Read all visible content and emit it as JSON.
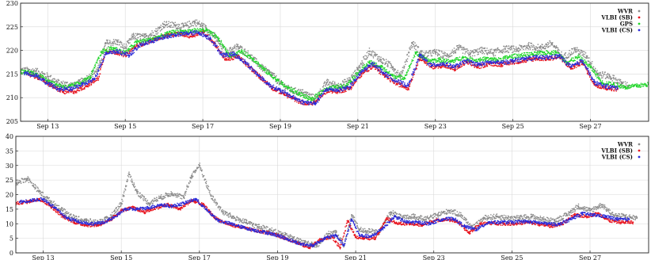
{
  "chart_data": [
    {
      "type": "scatter",
      "x_unit": "Sep day",
      "xlim": [
        12.3,
        28.5
      ],
      "ylim": [
        205,
        230
      ],
      "grid": true,
      "legend_position": "top-right",
      "x_ticks": [
        13,
        15,
        17,
        19,
        21,
        23,
        25,
        27
      ],
      "x_tick_labels": [
        "Sep 13",
        "Sep 15",
        "Sep 17",
        "Sep 19",
        "Sep 21",
        "Sep 23",
        "Sep 25",
        "Sep 27"
      ],
      "y_ticks": [
        205,
        210,
        215,
        220,
        225,
        230
      ],
      "y_tick_labels": [
        "205",
        "210",
        "215",
        "220",
        "225",
        "230"
      ],
      "series": [
        {
          "name": "WVR",
          "color": "#8a8a8a",
          "x": [
            12.3,
            12.7,
            13.0,
            13.3,
            13.7,
            14.0,
            14.3,
            14.5,
            14.8,
            15.0,
            15.2,
            15.5,
            15.8,
            16.0,
            16.3,
            16.5,
            16.8,
            17.0,
            17.3,
            17.6,
            17.9,
            18.2,
            18.5,
            18.8,
            19.0,
            19.3,
            19.6,
            19.9,
            20.2,
            20.5,
            20.8,
            21.0,
            21.3,
            21.6,
            21.9,
            22.1,
            22.4,
            22.7,
            23.0,
            23.3,
            23.6,
            23.9,
            24.2,
            24.5,
            24.8,
            25.1,
            25.4,
            25.7,
            26.0,
            26.3,
            26.6,
            26.9,
            27.2,
            27.5,
            27.8,
            28.0
          ],
          "y": [
            215.8,
            215.6,
            214.5,
            213.0,
            212.6,
            214.0,
            216.0,
            221.5,
            221.8,
            220.5,
            223.0,
            222.8,
            224.0,
            225.5,
            225.3,
            225.0,
            226.0,
            225.2,
            223.0,
            219.5,
            220.8,
            219.0,
            216.5,
            214.8,
            213.0,
            211.5,
            211.0,
            209.8,
            213.2,
            212.5,
            213.8,
            216.0,
            219.8,
            218.0,
            216.5,
            214.5,
            221.5,
            219.0,
            219.6,
            218.8,
            220.5,
            219.3,
            220.0,
            219.5,
            220.3,
            220.2,
            221.0,
            220.5,
            221.5,
            218.5,
            220.2,
            218.8,
            215.0,
            214.5,
            213.0,
            212.5
          ]
        },
        {
          "name": "VLBI (SB)",
          "color": "#e8141e",
          "x": [
            12.5,
            12.8,
            13.1,
            13.4,
            13.7,
            14.0,
            14.3,
            14.5,
            14.8,
            15.0,
            15.3,
            15.6,
            15.8,
            16.1,
            16.4,
            16.7,
            17.0,
            17.3,
            17.6,
            17.9,
            18.2,
            18.5,
            18.8,
            19.1,
            19.4,
            19.7,
            19.9,
            20.2,
            20.5,
            20.8,
            21.1,
            21.4,
            21.7,
            22.0,
            22.3,
            22.6,
            22.9,
            23.2,
            23.5,
            23.8,
            24.1,
            24.4,
            24.7,
            25.0,
            25.3,
            25.6,
            25.9,
            26.2,
            26.5,
            26.8,
            27.1,
            27.4,
            27.7
          ],
          "y": [
            214.8,
            214.2,
            212.5,
            211.2,
            211.3,
            212.5,
            214.0,
            220.0,
            219.5,
            219.0,
            221.0,
            221.8,
            222.5,
            223.2,
            223.5,
            223.0,
            224.0,
            221.5,
            218.0,
            218.8,
            216.5,
            214.2,
            212.0,
            210.8,
            209.5,
            208.6,
            209.0,
            211.5,
            211.3,
            212.0,
            215.0,
            216.8,
            214.5,
            213.0,
            212.0,
            218.5,
            216.5,
            216.8,
            216.0,
            217.5,
            216.5,
            217.2,
            217.0,
            217.5,
            217.8,
            218.3,
            218.2,
            218.6,
            216.2,
            217.5,
            212.8,
            212.0,
            211.8
          ]
        },
        {
          "name": "GPS",
          "color": "#22d62b",
          "x": [
            12.3,
            12.6,
            12.9,
            13.2,
            13.5,
            13.8,
            14.1,
            14.4,
            14.7,
            15.0,
            15.3,
            15.6,
            15.9,
            16.2,
            16.5,
            16.8,
            17.1,
            17.4,
            17.7,
            18.0,
            18.3,
            18.6,
            18.9,
            19.2,
            19.5,
            19.8,
            20.1,
            20.4,
            20.7,
            21.0,
            21.3,
            21.6,
            21.9,
            22.2,
            22.5,
            22.8,
            23.1,
            23.4,
            23.7,
            24.0,
            24.3,
            24.6,
            24.9,
            25.2,
            25.5,
            25.8,
            26.1,
            26.4,
            26.7,
            27.0,
            27.3,
            27.6,
            27.9,
            28.2,
            28.5
          ],
          "y": [
            215.5,
            215.3,
            214.2,
            212.8,
            212.2,
            213.0,
            214.3,
            219.8,
            220.5,
            219.5,
            221.8,
            222.2,
            223.0,
            223.8,
            224.0,
            224.2,
            224.3,
            222.5,
            218.8,
            219.8,
            218.2,
            215.8,
            213.8,
            212.0,
            210.8,
            209.5,
            211.5,
            212.2,
            212.6,
            215.2,
            217.5,
            216.5,
            214.6,
            214.2,
            219.5,
            217.8,
            218.0,
            217.6,
            218.5,
            217.9,
            218.2,
            218.0,
            218.6,
            219.0,
            219.2,
            219.5,
            219.6,
            217.5,
            218.6,
            216.5,
            213.2,
            212.8,
            212.2,
            212.5,
            212.8
          ]
        },
        {
          "name": "VLBI (CS)",
          "color": "#2b2bd8",
          "x": [
            12.4,
            12.7,
            13.0,
            13.3,
            13.6,
            13.9,
            14.2,
            14.5,
            14.8,
            15.1,
            15.4,
            15.7,
            16.0,
            16.3,
            16.6,
            16.9,
            17.2,
            17.5,
            17.8,
            18.1,
            18.4,
            18.7,
            19.0,
            19.3,
            19.6,
            19.9,
            20.2,
            20.5,
            20.8,
            21.1,
            21.4,
            21.7,
            22.0,
            22.3,
            22.6,
            22.9,
            23.2,
            23.5,
            23.8,
            24.1,
            24.4,
            24.7,
            25.0,
            25.3,
            25.6,
            25.9,
            26.2,
            26.5,
            26.8,
            27.1,
            27.4,
            27.7
          ],
          "y": [
            215.2,
            214.8,
            213.0,
            211.8,
            211.8,
            212.8,
            213.8,
            219.5,
            219.8,
            219.0,
            221.2,
            222.0,
            222.8,
            223.3,
            223.6,
            223.8,
            222.5,
            219.0,
            219.2,
            217.5,
            215.0,
            212.8,
            211.5,
            210.2,
            209.0,
            208.8,
            211.8,
            211.6,
            212.3,
            215.5,
            217.2,
            215.0,
            213.5,
            212.5,
            219.0,
            216.8,
            217.2,
            216.5,
            217.8,
            217.0,
            217.5,
            217.4,
            217.8,
            218.2,
            218.5,
            218.5,
            218.8,
            216.5,
            217.8,
            213.2,
            212.4,
            212.0
          ]
        }
      ]
    },
    {
      "type": "scatter",
      "x_unit": "Sep day",
      "xlim": [
        12.3,
        28.5
      ],
      "ylim": [
        0,
        40
      ],
      "grid": true,
      "legend_position": "top-right",
      "x_ticks": [
        13,
        15,
        17,
        19,
        21,
        23,
        25,
        27
      ],
      "x_tick_labels": [
        "Sep 13",
        "Sep 15",
        "Sep 17",
        "Sep 19",
        "Sep 21",
        "Sep 23",
        "Sep 25",
        "Sep 27"
      ],
      "y_ticks": [
        0,
        5,
        10,
        15,
        20,
        25,
        30,
        35,
        40
      ],
      "y_tick_labels": [
        "0",
        "5",
        "10",
        "15",
        "20",
        "25",
        "30",
        "35",
        "40"
      ],
      "series": [
        {
          "name": "WVR",
          "color": "#8a8a8a",
          "x": [
            12.3,
            12.6,
            12.9,
            13.2,
            13.5,
            13.8,
            14.1,
            14.4,
            14.7,
            15.0,
            15.2,
            15.4,
            15.7,
            16.0,
            16.3,
            16.6,
            16.8,
            17.0,
            17.3,
            17.6,
            17.9,
            18.2,
            18.5,
            18.8,
            19.1,
            19.4,
            19.7,
            20.0,
            20.3,
            20.5,
            20.7,
            20.9,
            21.1,
            21.3,
            21.6,
            21.9,
            22.2,
            22.5,
            22.8,
            23.1,
            23.4,
            23.7,
            24.0,
            24.3,
            24.6,
            24.9,
            25.2,
            25.5,
            25.8,
            26.1,
            26.4,
            26.7,
            27.0,
            27.3,
            27.6,
            27.9,
            28.2
          ],
          "y": [
            24.0,
            25.5,
            21.0,
            17.5,
            14.5,
            12.0,
            11.0,
            10.5,
            12.0,
            17.0,
            27.0,
            21.0,
            17.0,
            19.0,
            20.5,
            19.0,
            26.5,
            30.0,
            19.5,
            14.0,
            12.0,
            10.5,
            9.0,
            8.0,
            6.5,
            5.0,
            3.5,
            2.5,
            6.5,
            7.0,
            2.5,
            13.0,
            8.0,
            7.5,
            7.0,
            14.0,
            12.0,
            12.5,
            11.5,
            13.0,
            14.5,
            13.0,
            8.5,
            12.0,
            12.5,
            12.0,
            12.0,
            12.5,
            11.5,
            11.0,
            13.0,
            16.0,
            14.5,
            16.5,
            13.0,
            12.5,
            12.0
          ]
        },
        {
          "name": "VLBI (SB)",
          "color": "#e8141e",
          "x": [
            12.3,
            12.6,
            12.9,
            13.2,
            13.5,
            13.8,
            14.1,
            14.4,
            14.7,
            15.0,
            15.3,
            15.6,
            15.9,
            16.2,
            16.5,
            16.8,
            17.1,
            17.4,
            17.7,
            18.0,
            18.3,
            18.6,
            18.9,
            19.2,
            19.5,
            19.8,
            20.1,
            20.4,
            20.6,
            20.8,
            21.0,
            21.2,
            21.5,
            21.8,
            22.1,
            22.4,
            22.7,
            23.0,
            23.3,
            23.6,
            23.9,
            24.2,
            24.5,
            24.8,
            25.1,
            25.4,
            25.7,
            26.0,
            26.3,
            26.6,
            26.9,
            27.2,
            27.5,
            27.8,
            28.1
          ],
          "y": [
            17.0,
            17.5,
            18.5,
            16.0,
            12.5,
            10.5,
            9.5,
            9.5,
            11.0,
            14.5,
            15.5,
            14.0,
            15.5,
            16.5,
            15.0,
            18.0,
            16.5,
            12.0,
            10.0,
            9.0,
            8.0,
            7.2,
            6.5,
            5.0,
            3.5,
            1.8,
            4.5,
            5.5,
            1.8,
            11.0,
            5.5,
            5.0,
            5.0,
            12.0,
            10.0,
            10.0,
            9.5,
            11.0,
            11.5,
            10.8,
            6.8,
            10.0,
            10.2,
            10.0,
            10.0,
            10.5,
            9.8,
            9.2,
            10.0,
            13.0,
            12.5,
            13.5,
            11.0,
            10.5,
            10.5
          ]
        },
        {
          "name": "VLBI (CS)",
          "color": "#2b2bd8",
          "x": [
            12.4,
            12.7,
            13.0,
            13.3,
            13.6,
            13.9,
            14.2,
            14.5,
            14.8,
            15.1,
            15.4,
            15.7,
            16.0,
            16.3,
            16.6,
            16.9,
            17.2,
            17.5,
            17.8,
            18.1,
            18.4,
            18.7,
            19.0,
            19.3,
            19.6,
            19.9,
            20.2,
            20.5,
            20.7,
            20.9,
            21.1,
            21.4,
            21.7,
            22.0,
            22.3,
            22.6,
            22.9,
            23.2,
            23.5,
            23.8,
            24.1,
            24.4,
            24.7,
            25.0,
            25.3,
            25.6,
            25.9,
            26.2,
            26.5,
            26.8,
            27.1,
            27.4,
            27.7,
            28.0
          ],
          "y": [
            17.5,
            18.0,
            18.5,
            15.5,
            12.0,
            10.8,
            10.0,
            10.2,
            12.0,
            15.0,
            15.0,
            15.5,
            16.5,
            16.0,
            17.0,
            18.5,
            14.5,
            11.0,
            10.0,
            8.8,
            7.8,
            7.0,
            6.0,
            4.5,
            3.0,
            2.5,
            5.0,
            6.0,
            2.5,
            11.5,
            6.0,
            5.5,
            8.5,
            12.5,
            10.5,
            10.5,
            10.0,
            11.5,
            11.8,
            9.0,
            8.0,
            10.5,
            10.5,
            10.5,
            10.8,
            10.5,
            10.0,
            9.8,
            11.5,
            13.5,
            13.0,
            12.5,
            11.5,
            11.5
          ]
        }
      ]
    }
  ]
}
